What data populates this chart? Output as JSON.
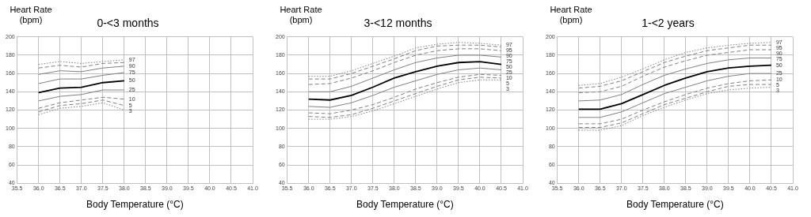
{
  "chart_data": [
    {
      "type": "line",
      "title": "0-<3 months",
      "xlabel": "Body Temperature (°C)",
      "ylabel": "Heart Rate (bpm)",
      "x": [
        36,
        36.5,
        37,
        37.5,
        38
      ],
      "xlim": [
        35.5,
        41
      ],
      "xticks": [
        {
          "value": 35.5,
          "label": "35.5"
        },
        {
          "value": 36,
          "label": "36.0"
        },
        {
          "value": 36.5,
          "label": "36.5"
        },
        {
          "value": 37,
          "label": "37.0"
        },
        {
          "value": 37.5,
          "label": "37.5"
        },
        {
          "value": 38,
          "label": "38.0"
        },
        {
          "value": 38.5,
          "label": "38.5"
        },
        {
          "value": 39,
          "label": "39.0"
        },
        {
          "value": 39.5,
          "label": "39.5"
        },
        {
          "value": 40,
          "label": "40.0"
        },
        {
          "value": 40.5,
          "label": "40.5"
        },
        {
          "value": 41,
          "label": "41.0"
        }
      ],
      "ylim": [
        40,
        200
      ],
      "yticks": [
        40,
        60,
        80,
        100,
        120,
        140,
        160,
        180,
        200
      ],
      "grid": true,
      "legend": false,
      "marker": "none",
      "series": [
        {
          "name": "97",
          "color": "#808080",
          "line_style": "dotted",
          "values": [
            170,
            173,
            171,
            173,
            175
          ]
        },
        {
          "color": "#808080",
          "line_style": "dashed",
          "values": [
            166,
            169,
            167,
            171,
            172
          ]
        },
        {
          "name": "90",
          "color": "#808080",
          "line_style": "solid",
          "values": [
            159,
            163,
            162,
            166,
            168
          ]
        },
        {
          "name": "75",
          "color": "#808080",
          "line_style": "solid",
          "values": [
            149,
            154,
            154,
            158,
            161
          ]
        },
        {
          "name": "50",
          "color": "#000000",
          "line_style": "solid",
          "values": [
            139,
            144,
            145,
            150,
            152
          ]
        },
        {
          "name": "25",
          "color": "#808080",
          "line_style": "solid",
          "values": [
            130,
            135,
            137,
            142,
            142
          ]
        },
        {
          "name": "10",
          "color": "#808080",
          "line_style": "dashed",
          "values": [
            122,
            128,
            131,
            134,
            132
          ]
        },
        {
          "name": "5",
          "color": "#808080",
          "line_style": "dashed",
          "values": [
            118,
            125,
            127,
            131,
            125
          ]
        },
        {
          "name": "3",
          "color": "#808080",
          "line_style": "dotted",
          "values": [
            115,
            122,
            124,
            128,
            120
          ]
        }
      ]
    },
    {
      "type": "line",
      "title": "3-<12 months",
      "xlabel": "Body Temperature (°C)",
      "ylabel": "Heart Rate (bpm)",
      "x": [
        36,
        36.5,
        37,
        37.5,
        38,
        38.5,
        39,
        39.5,
        40,
        40.5
      ],
      "xlim": [
        35.5,
        41
      ],
      "xticks": [
        {
          "value": 35.5,
          "label": "35.5"
        },
        {
          "value": 36,
          "label": "36.0"
        },
        {
          "value": 36.5,
          "label": "36.5"
        },
        {
          "value": 37,
          "label": "37.0"
        },
        {
          "value": 37.5,
          "label": "37.5"
        },
        {
          "value": 38,
          "label": "38.0"
        },
        {
          "value": 38.5,
          "label": "38.5"
        },
        {
          "value": 39,
          "label": "39.0"
        },
        {
          "value": 39.5,
          "label": "39.5"
        },
        {
          "value": 40,
          "label": "40.0"
        },
        {
          "value": 40.5,
          "label": "40.5"
        },
        {
          "value": 41,
          "label": "41.0"
        }
      ],
      "ylim": [
        40,
        200
      ],
      "yticks": [
        40,
        60,
        80,
        100,
        120,
        140,
        160,
        180,
        200
      ],
      "grid": true,
      "legend": false,
      "marker": "none",
      "series": [
        {
          "name": "97",
          "color": "#808080",
          "line_style": "dotted",
          "values": [
            157,
            157,
            163,
            171,
            179,
            188,
            192,
            194,
            193,
            191
          ]
        },
        {
          "name": "95",
          "color": "#808080",
          "line_style": "dashed",
          "values": [
            154,
            154,
            160,
            168,
            176,
            185,
            190,
            191,
            191,
            189
          ]
        },
        {
          "name": "90",
          "color": "#808080",
          "line_style": "dashed",
          "values": [
            148,
            149,
            155,
            163,
            172,
            180,
            185,
            187,
            187,
            185
          ]
        },
        {
          "name": "75",
          "color": "#808080",
          "line_style": "solid",
          "values": [
            140,
            140,
            146,
            155,
            164,
            172,
            177,
            180,
            180,
            178
          ]
        },
        {
          "name": "50",
          "color": "#000000",
          "line_style": "solid",
          "values": [
            132,
            131,
            136,
            145,
            155,
            162,
            168,
            172,
            173,
            170
          ]
        },
        {
          "name": "25",
          "color": "#808080",
          "line_style": "solid",
          "values": [
            124,
            123,
            128,
            136,
            145,
            152,
            159,
            164,
            166,
            164
          ]
        },
        {
          "name": "10",
          "color": "#808080",
          "line_style": "dashed",
          "values": [
            117,
            116,
            120,
            126,
            134,
            143,
            150,
            156,
            159,
            158
          ]
        },
        {
          "name": "5",
          "color": "#808080",
          "line_style": "dashed",
          "values": [
            113,
            112,
            115,
            122,
            130,
            138,
            146,
            153,
            156,
            155
          ]
        },
        {
          "name": "3",
          "color": "#808080",
          "line_style": "dotted",
          "values": [
            110,
            110,
            113,
            119,
            127,
            135,
            143,
            150,
            153,
            153
          ]
        }
      ]
    },
    {
      "type": "line",
      "title": "1-<2 years",
      "xlabel": "Body Temperature (°C)",
      "ylabel": "Heart Rate (bpm)",
      "x": [
        36,
        36.5,
        37,
        37.5,
        38,
        38.5,
        39,
        39.5,
        40,
        40.5
      ],
      "xlim": [
        35.5,
        41
      ],
      "xticks": [
        {
          "value": 35.5,
          "label": "35.5"
        },
        {
          "value": 36,
          "label": "36.0"
        },
        {
          "value": 36.5,
          "label": "36.5"
        },
        {
          "value": 37,
          "label": "37.0"
        },
        {
          "value": 37.5,
          "label": "37.5"
        },
        {
          "value": 38,
          "label": "38.0"
        },
        {
          "value": 38.5,
          "label": "38.5"
        },
        {
          "value": 39,
          "label": "39.0"
        },
        {
          "value": 39.5,
          "label": "39.5"
        },
        {
          "value": 40,
          "label": "40.0"
        },
        {
          "value": 40.5,
          "label": "40.5"
        },
        {
          "value": 41,
          "label": "41.0"
        }
      ],
      "ylim": [
        40,
        200
      ],
      "yticks": [
        40,
        60,
        80,
        100,
        120,
        140,
        160,
        180,
        200
      ],
      "grid": true,
      "legend": false,
      "marker": "none",
      "series": [
        {
          "name": "97",
          "color": "#808080",
          "line_style": "dotted",
          "values": [
            147,
            149,
            156,
            165,
            175,
            183,
            188,
            191,
            193,
            194
          ]
        },
        {
          "name": "95",
          "color": "#808080",
          "line_style": "dashed",
          "values": [
            144,
            146,
            152,
            162,
            172,
            179,
            185,
            188,
            191,
            191
          ]
        },
        {
          "name": "90",
          "color": "#808080",
          "line_style": "dashed",
          "values": [
            139,
            140,
            146,
            157,
            167,
            174,
            180,
            183,
            186,
            186
          ]
        },
        {
          "name": "75",
          "color": "#808080",
          "line_style": "solid",
          "values": [
            130,
            131,
            137,
            148,
            158,
            165,
            171,
            175,
            177,
            177
          ]
        },
        {
          "name": "50",
          "color": "#000000",
          "line_style": "solid",
          "values": [
            121,
            121,
            127,
            137,
            147,
            155,
            162,
            166,
            168,
            169
          ]
        },
        {
          "name": "25",
          "color": "#808080",
          "line_style": "solid",
          "values": [
            112,
            112,
            118,
            128,
            138,
            145,
            152,
            157,
            160,
            160
          ]
        },
        {
          "name": "10",
          "color": "#808080",
          "line_style": "dashed",
          "values": [
            105,
            105,
            110,
            120,
            129,
            137,
            144,
            149,
            152,
            153
          ]
        },
        {
          "name": "5",
          "color": "#808080",
          "line_style": "dashed",
          "values": [
            101,
            101,
            106,
            116,
            126,
            133,
            140,
            146,
            148,
            148
          ]
        },
        {
          "name": "3",
          "color": "#808080",
          "line_style": "dotted",
          "values": [
            98,
            98,
            103,
            114,
            123,
            131,
            138,
            142,
            144,
            145
          ]
        }
      ]
    }
  ]
}
